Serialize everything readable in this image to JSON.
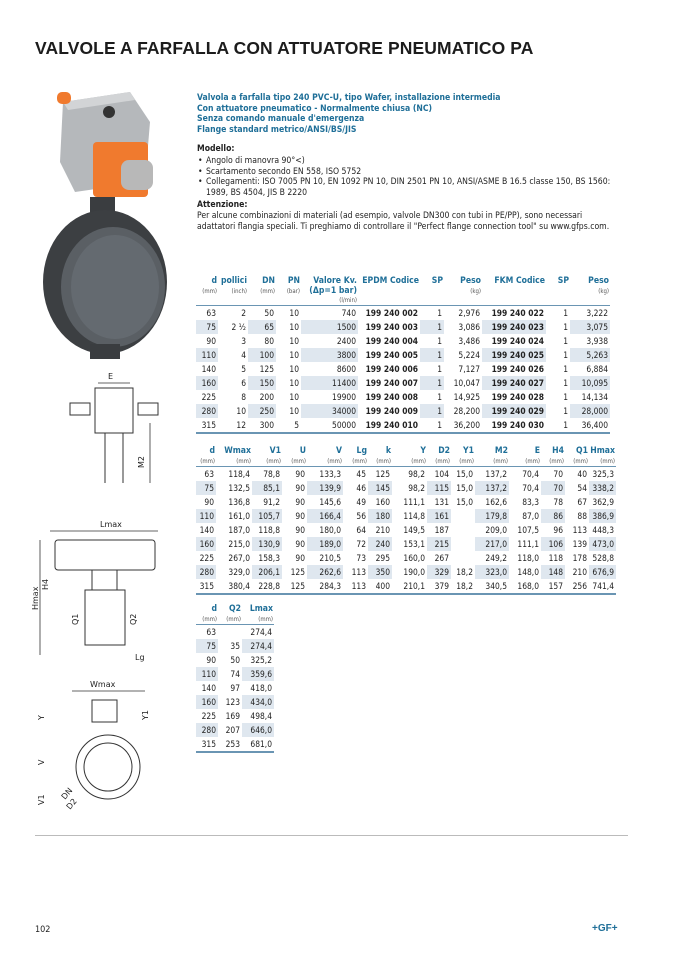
{
  "title": "VALVOLE A FARFALLA CON ATTUATORE PNEUMATICO PA",
  "intro": {
    "lines": [
      "Valvola a farfalla tipo 240 PVC-U, tipo Wafer, installazione intermedia",
      "Con attuatore pneumatico - Normalmente chiusa (NC)",
      "Senza comando manuale d'emergenza",
      "Flange standard metrico/ANSI/BS/JIS"
    ],
    "model_heading": "Modello:",
    "model_items": [
      "Angolo di manovra 90°<)",
      "Scartamento secondo EN 558, ISO 5752",
      "Collegamenti: ISO 7005 PN 10, EN 1092 PN 10, DIN 2501 PN 10, ANSI/ASME B 16.5 classe 150, BS 1560: 1989, BS 4504, JIS B 2220"
    ],
    "attention_heading": "Attenzione:",
    "attention_text": "Per alcune combinazioni di materiali (ad esempio, valvole DN300 con tubi in PE/PP), sono necessari adattatori flangia speciali. Ti preghiamo di controllare il \"Perfect flange connection tool\" su www.gfps.com."
  },
  "table1": {
    "headers": [
      [
        "d",
        "(mm)"
      ],
      [
        "pollici",
        "(inch)"
      ],
      [
        "DN",
        "(mm)"
      ],
      [
        "PN",
        "(bar)"
      ],
      [
        "Valore Kv. (Δp=1 bar)",
        "(l/min)"
      ],
      [
        "EPDM Codice",
        ""
      ],
      [
        "SP",
        ""
      ],
      [
        "Peso",
        "(kg)"
      ],
      [
        "FKM Codice",
        ""
      ],
      [
        "SP",
        ""
      ],
      [
        "Peso",
        "(kg)"
      ]
    ],
    "rows": [
      [
        "63",
        "2",
        "50",
        "10",
        "740",
        "199 240 002",
        "1",
        "2,976",
        "199 240 022",
        "1",
        "3,222"
      ],
      [
        "75",
        "2 ½",
        "65",
        "10",
        "1500",
        "199 240 003",
        "1",
        "3,086",
        "199 240 023",
        "1",
        "3,075"
      ],
      [
        "90",
        "3",
        "80",
        "10",
        "2400",
        "199 240 004",
        "1",
        "3,486",
        "199 240 024",
        "1",
        "3,938"
      ],
      [
        "110",
        "4",
        "100",
        "10",
        "3800",
        "199 240 005",
        "1",
        "5,224",
        "199 240 025",
        "1",
        "5,263"
      ],
      [
        "140",
        "5",
        "125",
        "10",
        "8600",
        "199 240 006",
        "1",
        "7,127",
        "199 240 026",
        "1",
        "6,884"
      ],
      [
        "160",
        "6",
        "150",
        "10",
        "11400",
        "199 240 007",
        "1",
        "10,047",
        "199 240 027",
        "1",
        "10,095"
      ],
      [
        "225",
        "8",
        "200",
        "10",
        "19900",
        "199 240 008",
        "1",
        "14,925",
        "199 240 028",
        "1",
        "14,134"
      ],
      [
        "280",
        "10",
        "250",
        "10",
        "34000",
        "199 240 009",
        "1",
        "28,200",
        "199 240 029",
        "1",
        "28,000"
      ],
      [
        "315",
        "12",
        "300",
        "5",
        "50000",
        "199 240 010",
        "1",
        "36,200",
        "199 240 030",
        "1",
        "36,400"
      ]
    ]
  },
  "table2": {
    "headers": [
      [
        "d",
        "(mm)"
      ],
      [
        "Wmax",
        "(mm)"
      ],
      [
        "V1",
        "(mm)"
      ],
      [
        "U",
        "(mm)"
      ],
      [
        "V",
        "(mm)"
      ],
      [
        "Lg",
        "(mm)"
      ],
      [
        "k",
        "(mm)"
      ],
      [
        "Y",
        "(mm)"
      ],
      [
        "D2",
        "(mm)"
      ],
      [
        "Y1",
        "(mm)"
      ],
      [
        "M2",
        "(mm)"
      ],
      [
        "E",
        "(mm)"
      ],
      [
        "H4",
        "(mm)"
      ],
      [
        "Q1",
        "(mm)"
      ],
      [
        "Hmax",
        "(mm)"
      ]
    ],
    "rows": [
      [
        "63",
        "118,4",
        "78,8",
        "90",
        "133,3",
        "45",
        "125",
        "98,2",
        "104",
        "15,0",
        "137,2",
        "70,4",
        "70",
        "40",
        "325,3"
      ],
      [
        "75",
        "132,5",
        "85,1",
        "90",
        "139,9",
        "46",
        "145",
        "98,2",
        "115",
        "15,0",
        "137,2",
        "70,4",
        "70",
        "54",
        "338,2"
      ],
      [
        "90",
        "136,8",
        "91,2",
        "90",
        "145,6",
        "49",
        "160",
        "111,1",
        "131",
        "15,0",
        "162,6",
        "83,3",
        "78",
        "67",
        "362,9"
      ],
      [
        "110",
        "161,0",
        "105,7",
        "90",
        "166,4",
        "56",
        "180",
        "114,8",
        "161",
        "",
        "179,8",
        "87,0",
        "86",
        "88",
        "386,9"
      ],
      [
        "140",
        "187,0",
        "118,8",
        "90",
        "180,0",
        "64",
        "210",
        "149,5",
        "187",
        "",
        "209,0",
        "107,5",
        "96",
        "113",
        "448,3"
      ],
      [
        "160",
        "215,0",
        "130,9",
        "90",
        "189,0",
        "72",
        "240",
        "153,1",
        "215",
        "",
        "217,0",
        "111,1",
        "106",
        "139",
        "473,0"
      ],
      [
        "225",
        "267,0",
        "158,3",
        "90",
        "210,5",
        "73",
        "295",
        "160,0",
        "267",
        "",
        "249,2",
        "118,0",
        "118",
        "178",
        "528,8"
      ],
      [
        "280",
        "329,0",
        "206,1",
        "125",
        "262,6",
        "113",
        "350",
        "190,0",
        "329",
        "18,2",
        "323,0",
        "148,0",
        "148",
        "210",
        "676,9"
      ],
      [
        "315",
        "380,4",
        "228,8",
        "125",
        "284,3",
        "113",
        "400",
        "210,1",
        "379",
        "18,2",
        "340,5",
        "168,0",
        "157",
        "256",
        "741,4"
      ]
    ]
  },
  "table3": {
    "headers": [
      [
        "d",
        "(mm)"
      ],
      [
        "Q2",
        "(mm)"
      ],
      [
        "Lmax",
        "(mm)"
      ]
    ],
    "rows": [
      [
        "63",
        "",
        "274,4"
      ],
      [
        "75",
        "35",
        "274,4"
      ],
      [
        "90",
        "50",
        "325,2"
      ],
      [
        "110",
        "74",
        "359,6"
      ],
      [
        "140",
        "97",
        "418,0"
      ],
      [
        "160",
        "123",
        "434,0"
      ],
      [
        "225",
        "169",
        "498,4"
      ],
      [
        "280",
        "207",
        "646,0"
      ],
      [
        "315",
        "253",
        "681,0"
      ]
    ]
  },
  "drawing_labels": {
    "e": "E",
    "m2": "M2",
    "lmax": "Lmax",
    "hmax": "Hmax",
    "h4": "H4",
    "q1": "Q1",
    "q2": "Q2",
    "lg": "Lg",
    "wmax": "Wmax",
    "y": "Y",
    "y1": "Y1",
    "v": "V",
    "v1": "V1",
    "dn": "DN",
    "d2": "D2"
  },
  "footer": {
    "page": "102",
    "logo": "+GF+"
  },
  "colors": {
    "accent": "#1f6f98",
    "actuator_orange": "#f07a2e",
    "shade": "#dfe7ef"
  }
}
